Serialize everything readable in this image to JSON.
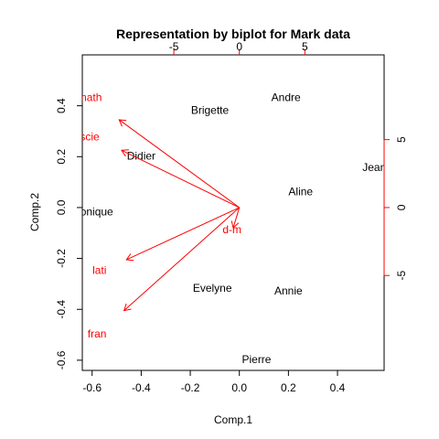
{
  "chart_data": {
    "type": "biplot",
    "title": "Representation by biplot for Mark data",
    "xlabel": "Comp.1",
    "ylabel": "Comp.2",
    "xlim": [
      -0.64,
      0.59
    ],
    "ylim": [
      -0.64,
      0.6
    ],
    "x_ticks": [
      -0.6,
      -0.4,
      -0.2,
      0.0,
      0.2,
      0.4
    ],
    "x_tick_labels": [
      "-0.6",
      "-0.4",
      "-0.2",
      "0.0",
      "0.2",
      "0.4"
    ],
    "y_ticks": [
      -0.6,
      -0.4,
      -0.2,
      0.0,
      0.2,
      0.4
    ],
    "y_tick_labels": [
      "-0.6",
      "-0.4",
      "-0.2",
      "0.0",
      "0.2",
      "0.4"
    ],
    "top_axis": {
      "ticks": [
        -5,
        0,
        5
      ],
      "tick_labels": [
        "-5",
        "0",
        "5"
      ],
      "scale_ratio": 0.0534
    },
    "right_axis": {
      "ticks": [
        -5,
        0,
        5
      ],
      "tick_labels": [
        "-5",
        "0",
        "5"
      ],
      "scale_ratio": 0.0534
    },
    "colors": {
      "points": "#000000",
      "arrows": "#ff0000",
      "axes": "#000000"
    },
    "points": [
      {
        "label": "Andre",
        "x": 0.19,
        "y": 0.43
      },
      {
        "label": "Brigette",
        "x": -0.12,
        "y": 0.38
      },
      {
        "label": "Didier",
        "x": -0.4,
        "y": 0.2
      },
      {
        "label": "Jean",
        "x": 0.55,
        "y": 0.155
      },
      {
        "label": "Aline",
        "x": 0.25,
        "y": 0.06
      },
      {
        "label": "Monique",
        "x": -0.6,
        "y": -0.02
      },
      {
        "label": "Evelyne",
        "x": -0.11,
        "y": -0.32
      },
      {
        "label": "Annie",
        "x": 0.2,
        "y": -0.33
      },
      {
        "label": "Pierre",
        "x": 0.07,
        "y": -0.6
      }
    ],
    "loadings": [
      {
        "label": "math",
        "x": -0.49,
        "y": 0.345,
        "label_x": -0.61,
        "label_y": 0.43
      },
      {
        "label": "scie",
        "x": -0.48,
        "y": 0.225,
        "label_x": -0.61,
        "label_y": 0.275
      },
      {
        "label": "lati",
        "x": -0.46,
        "y": -0.205,
        "label_x": -0.57,
        "label_y": -0.25
      },
      {
        "label": "fran",
        "x": -0.47,
        "y": -0.405,
        "label_x": -0.58,
        "label_y": -0.5
      },
      {
        "label": "d-m",
        "x": -0.025,
        "y": -0.08,
        "label_x": -0.03,
        "label_y": -0.09
      }
    ]
  }
}
